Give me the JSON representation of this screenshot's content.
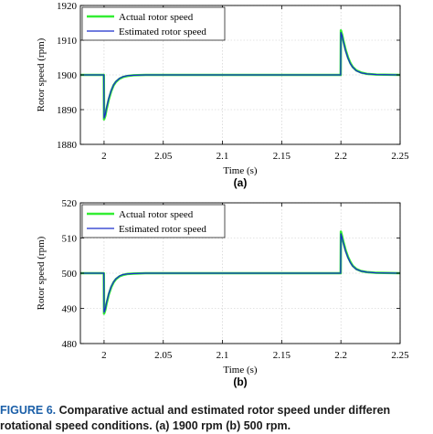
{
  "colors": {
    "actual": "#33ee33",
    "estimated": "#1a2ecc",
    "frame": "#000000",
    "grid": "#c8c8c8",
    "caption_lead": "#1b5fa8"
  },
  "caption": {
    "lead": "FIGURE 6.",
    "line1": "Comparative actual and estimated rotor speed under differen",
    "line2": "rotational speed conditions. (a) 1900 rpm (b) 500 rpm."
  },
  "chart_data": [
    {
      "type": "line",
      "panel_label": "(a)",
      "xlabel": "Time (s)",
      "ylabel": "Rotor speed (rpm)",
      "xlim": [
        1.98,
        2.25
      ],
      "ylim": [
        1880,
        1920
      ],
      "xticks": [
        2,
        2.05,
        2.1,
        2.15,
        2.2,
        2.25
      ],
      "xtick_labels": [
        "2",
        "2.05",
        "2.1",
        "2.15",
        "2.2",
        "2.25"
      ],
      "yticks": [
        1880,
        1890,
        1900,
        1910,
        1920
      ],
      "ytick_labels": [
        "1880",
        "1890",
        "1900",
        "1910",
        "1920"
      ],
      "grid": true,
      "legend_position": "top-left",
      "series": [
        {
          "name": "Actual rotor speed",
          "x": [
            1.98,
            1.9998,
            2.0,
            2.001,
            2.002,
            2.004,
            2.006,
            2.008,
            2.01,
            2.013,
            2.016,
            2.02,
            2.025,
            2.035,
            2.1,
            2.1998,
            2.2,
            2.201,
            2.202,
            2.204,
            2.206,
            2.208,
            2.21,
            2.213,
            2.217,
            2.222,
            2.23,
            2.25
          ],
          "y": [
            1900,
            1900,
            1887.2,
            1888.2,
            1890.0,
            1893.0,
            1895.3,
            1897.0,
            1898.0,
            1898.9,
            1899.4,
            1899.7,
            1899.9,
            1900,
            1900,
            1900,
            1912.8,
            1911.6,
            1910.0,
            1907.2,
            1905.0,
            1903.4,
            1902.3,
            1901.3,
            1900.7,
            1900.3,
            1900.1,
            1900
          ]
        },
        {
          "name": "Estimated rotor speed",
          "x": [
            1.98,
            1.9998,
            2.0,
            2.001,
            2.002,
            2.004,
            2.006,
            2.008,
            2.01,
            2.013,
            2.016,
            2.02,
            2.025,
            2.035,
            2.1,
            2.1998,
            2.2,
            2.201,
            2.202,
            2.204,
            2.206,
            2.208,
            2.21,
            2.213,
            2.217,
            2.222,
            2.23,
            2.25
          ],
          "y": [
            1900,
            1900,
            1887.6,
            1888.6,
            1890.4,
            1893.3,
            1895.5,
            1897.1,
            1898.1,
            1899.0,
            1899.5,
            1899.8,
            1899.9,
            1900,
            1900,
            1900,
            1912.2,
            1911.2,
            1909.6,
            1906.9,
            1904.8,
            1903.2,
            1902.2,
            1901.2,
            1900.6,
            1900.3,
            1900.1,
            1900
          ]
        }
      ]
    },
    {
      "type": "line",
      "panel_label": "(b)",
      "xlabel": "Time (s)",
      "ylabel": "Rotor speed (rpm)",
      "xlim": [
        1.98,
        2.25
      ],
      "ylim": [
        480,
        520
      ],
      "xticks": [
        2,
        2.05,
        2.1,
        2.15,
        2.2,
        2.25
      ],
      "xtick_labels": [
        "2",
        "2.05",
        "2.1",
        "2.15",
        "2.2",
        "2.25"
      ],
      "yticks": [
        480,
        490,
        500,
        510,
        520
      ],
      "ytick_labels": [
        "480",
        "490",
        "500",
        "510",
        "520"
      ],
      "grid": true,
      "legend_position": "top-left",
      "series": [
        {
          "name": "Actual rotor speed",
          "x": [
            1.98,
            1.9998,
            2.0,
            2.001,
            2.002,
            2.004,
            2.006,
            2.008,
            2.01,
            2.013,
            2.016,
            2.02,
            2.025,
            2.035,
            2.1,
            2.1998,
            2.2,
            2.201,
            2.202,
            2.204,
            2.206,
            2.208,
            2.21,
            2.213,
            2.217,
            2.222,
            2.23,
            2.25
          ],
          "y": [
            500,
            500,
            488.5,
            489.5,
            491.2,
            494.0,
            496.0,
            497.4,
            498.3,
            499.1,
            499.5,
            499.8,
            499.9,
            500,
            500,
            500,
            511.8,
            510.5,
            509.0,
            506.5,
            504.6,
            503.2,
            502.1,
            501.2,
            500.6,
            500.3,
            500.1,
            500
          ]
        },
        {
          "name": "Estimated rotor speed",
          "x": [
            1.98,
            1.9998,
            2.0,
            2.001,
            2.002,
            2.004,
            2.006,
            2.008,
            2.01,
            2.013,
            2.016,
            2.02,
            2.025,
            2.035,
            2.1,
            2.1998,
            2.2,
            2.201,
            2.202,
            2.204,
            2.206,
            2.208,
            2.21,
            2.213,
            2.217,
            2.222,
            2.23,
            2.25
          ],
          "y": [
            500,
            500,
            488.9,
            489.8,
            491.5,
            494.2,
            496.2,
            497.5,
            498.4,
            499.2,
            499.6,
            499.8,
            499.9,
            500,
            500,
            500,
            511.2,
            510.0,
            508.6,
            506.2,
            504.4,
            503.0,
            502.0,
            501.1,
            500.6,
            500.3,
            500.1,
            500
          ]
        }
      ]
    }
  ]
}
